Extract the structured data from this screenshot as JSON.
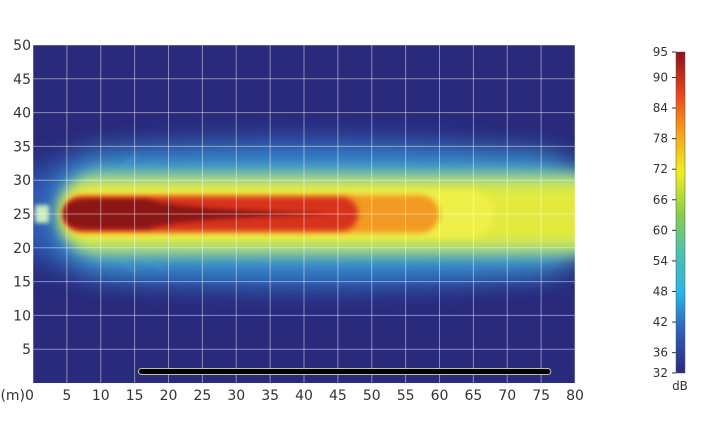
{
  "chart_data": {
    "type": "heatmap",
    "title": "",
    "x_unit_label": "(m)",
    "xlim": [
      0,
      80
    ],
    "ylim": [
      0,
      50
    ],
    "x_ticks": [
      0,
      5,
      10,
      15,
      20,
      25,
      30,
      35,
      40,
      45,
      50,
      55,
      60,
      65,
      70,
      75,
      80
    ],
    "y_ticks": [
      5,
      10,
      15,
      20,
      25,
      30,
      35,
      40,
      45,
      50
    ],
    "grid": true,
    "colorbar": {
      "label": "dB",
      "min": 32,
      "max": 95,
      "ticks": [
        95,
        90,
        84,
        78,
        72,
        66,
        60,
        54,
        48,
        42,
        36,
        32
      ],
      "colormap": [
        "#2a2a7c",
        "#2f5bb5",
        "#29b6e8",
        "#4cc0b0",
        "#8ccf4a",
        "#f0ee1e",
        "#f7a21c",
        "#e8401f",
        "#8b1418"
      ],
      "position": "right"
    },
    "source": {
      "x": 1,
      "y": 25
    },
    "centerline_profile_dB": {
      "x": [
        2,
        5,
        10,
        20,
        30,
        40,
        45,
        50,
        55,
        60,
        65,
        70,
        80
      ],
      "y": [
        93,
        94,
        93,
        92,
        91,
        90,
        86,
        84,
        81,
        79,
        75,
        70,
        68
      ]
    },
    "background_level_dB": 34,
    "annotation_bar": {
      "x_start": 16,
      "x_end": 76,
      "y": 1.7,
      "color": "#000000"
    }
  }
}
